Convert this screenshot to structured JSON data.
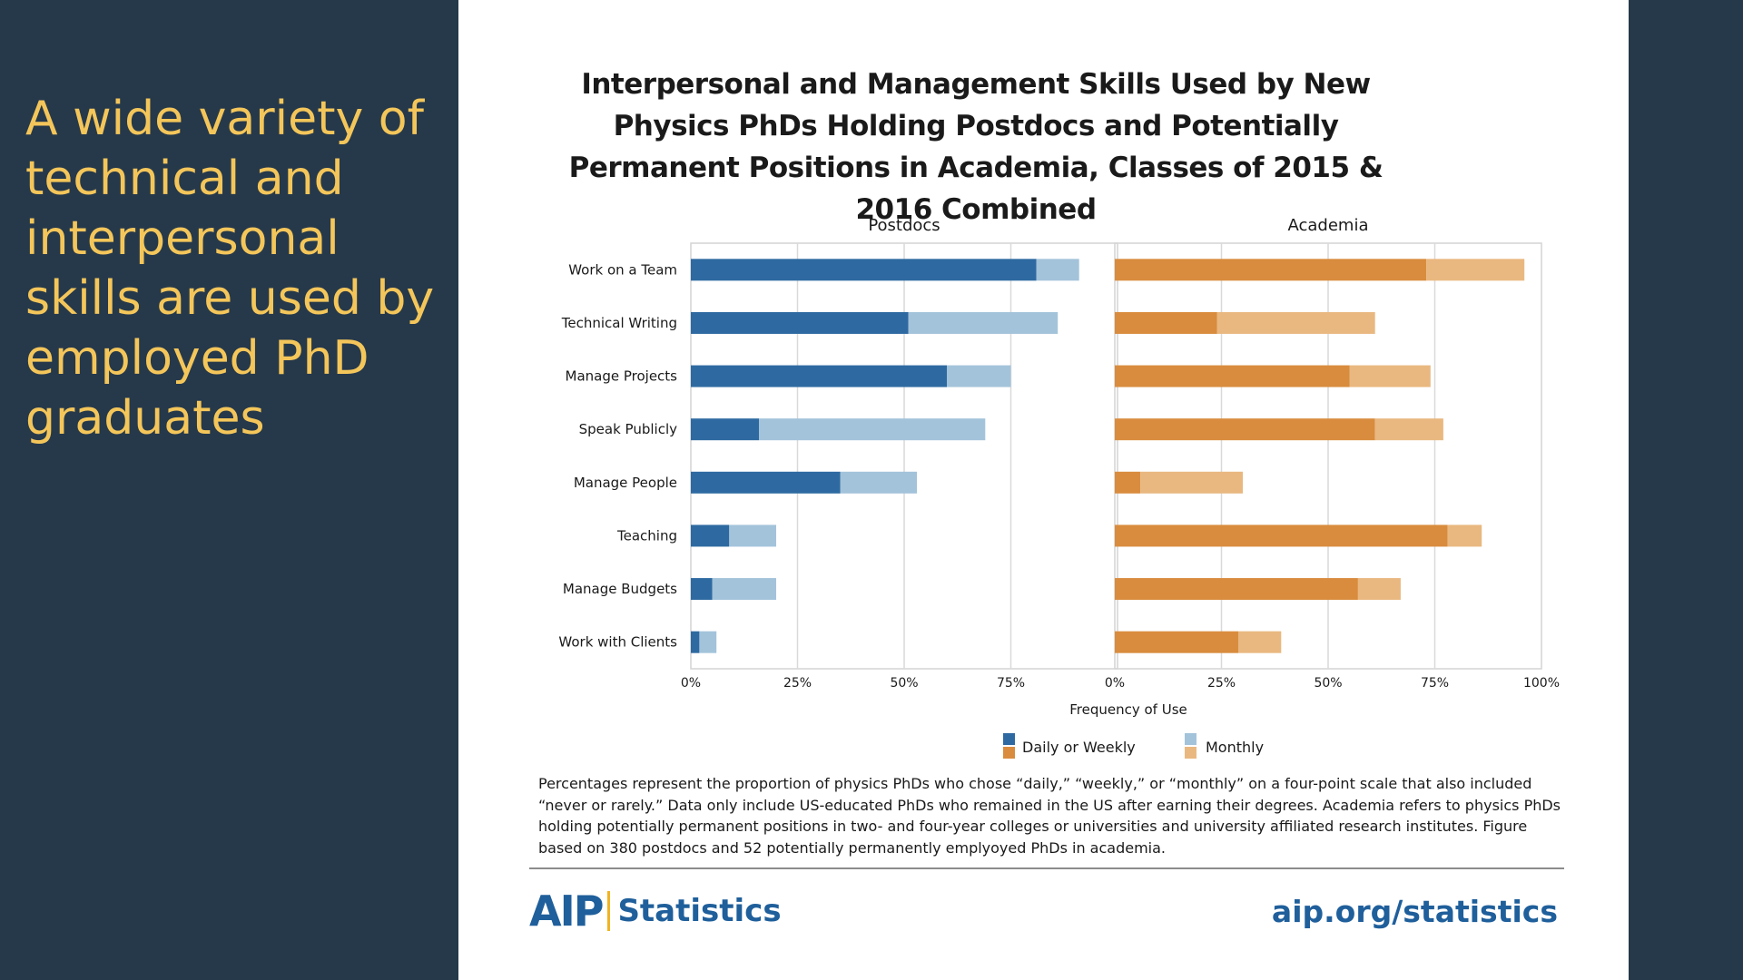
{
  "slide": {
    "text": "A wide variety of technical and interpersonal skills are used by employed PhD graduates"
  },
  "colors": {
    "postdoc_daily": "#2e6aa1",
    "postdoc_monthly": "#a3c3da",
    "academia_daily": "#d98c3e",
    "academia_monthly": "#e9b880"
  },
  "chart_data": {
    "type": "bar",
    "orientation": "horizontal",
    "stacked": true,
    "title": "Interpersonal and Management Skills Used by New Physics PhDs Holding Postdocs and Potentially Permanent Positions in Academia, Classes of 2015 & 2016 Combined",
    "xlabel": "Frequency of Use",
    "xlim": [
      0,
      100
    ],
    "grid": true,
    "legend_position": "bottom",
    "categories": [
      "Work on a Team",
      "Technical Writing",
      "Manage Projects",
      "Speak Publicly",
      "Manage People",
      "Teaching",
      "Manage Budgets",
      "Work with Clients"
    ],
    "panels": [
      {
        "name": "Postdocs",
        "x_ticks": [
          "0%",
          "25%",
          "50%",
          "75%"
        ],
        "series": [
          {
            "name": "Daily or Weekly",
            "values": [
              81,
              51,
              60,
              16,
              35,
              9,
              5,
              2
            ]
          },
          {
            "name": "Monthly",
            "values": [
              10,
              35,
              15,
              53,
              18,
              11,
              15,
              4
            ]
          }
        ]
      },
      {
        "name": "Academia",
        "x_ticks": [
          "0%",
          "25%",
          "50%",
          "75%",
          "100%"
        ],
        "series": [
          {
            "name": "Daily or Weekly",
            "values": [
              73,
              24,
              55,
              61,
              6,
              78,
              57,
              29
            ]
          },
          {
            "name": "Monthly",
            "values": [
              23,
              37,
              19,
              16,
              24,
              8,
              10,
              10
            ]
          }
        ]
      }
    ],
    "legend": [
      {
        "label": "Daily or Weekly"
      },
      {
        "label": "Monthly"
      }
    ]
  },
  "caption": "Percentages represent the proportion of physics PhDs who chose “daily,” “weekly,” or “monthly” on a four-point scale that also included “never or rarely.” Data only include US-educated PhDs who remained in the US after earning their degrees. Academia refers to physics PhDs holding potentially permanent positions in two- and four-year colleges or universities and university affiliated research institutes. Figure based on 380 postdocs and 52 potentially permanently emplyoyed PhDs in academia.",
  "footer": {
    "logo_aip": "AIP",
    "logo_statistics": "Statistics",
    "url": "aip.org/statistics"
  }
}
